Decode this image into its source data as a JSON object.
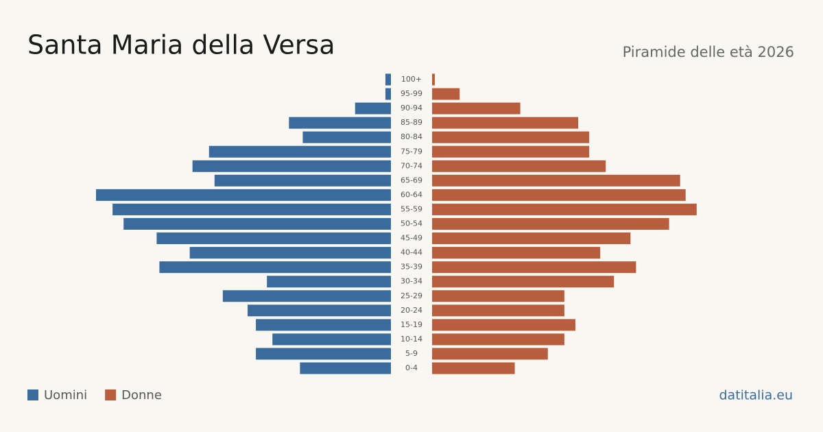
{
  "chart_data": {
    "type": "pyramid",
    "title": "Santa Maria della Versa",
    "subtitle": "Piramide delle età 2026",
    "source": "datitalia.eu",
    "categories": [
      "100+",
      "95-99",
      "90-94",
      "85-89",
      "80-84",
      "75-79",
      "70-74",
      "65-69",
      "60-64",
      "55-59",
      "50-54",
      "45-49",
      "40-44",
      "35-39",
      "30-34",
      "25-29",
      "20-24",
      "15-19",
      "10-14",
      "5-9",
      "0-4"
    ],
    "series": [
      {
        "name": "Uomini",
        "color": "#3b6b9c",
        "values": [
          2,
          2,
          13,
          37,
          32,
          66,
          72,
          64,
          107,
          101,
          97,
          85,
          73,
          84,
          45,
          61,
          52,
          49,
          43,
          49,
          33
        ]
      },
      {
        "name": "Donne",
        "color": "#b85d3d",
        "values": [
          1,
          10,
          32,
          53,
          57,
          57,
          63,
          90,
          92,
          96,
          86,
          72,
          61,
          74,
          66,
          48,
          48,
          52,
          48,
          42,
          30
        ]
      }
    ]
  }
}
